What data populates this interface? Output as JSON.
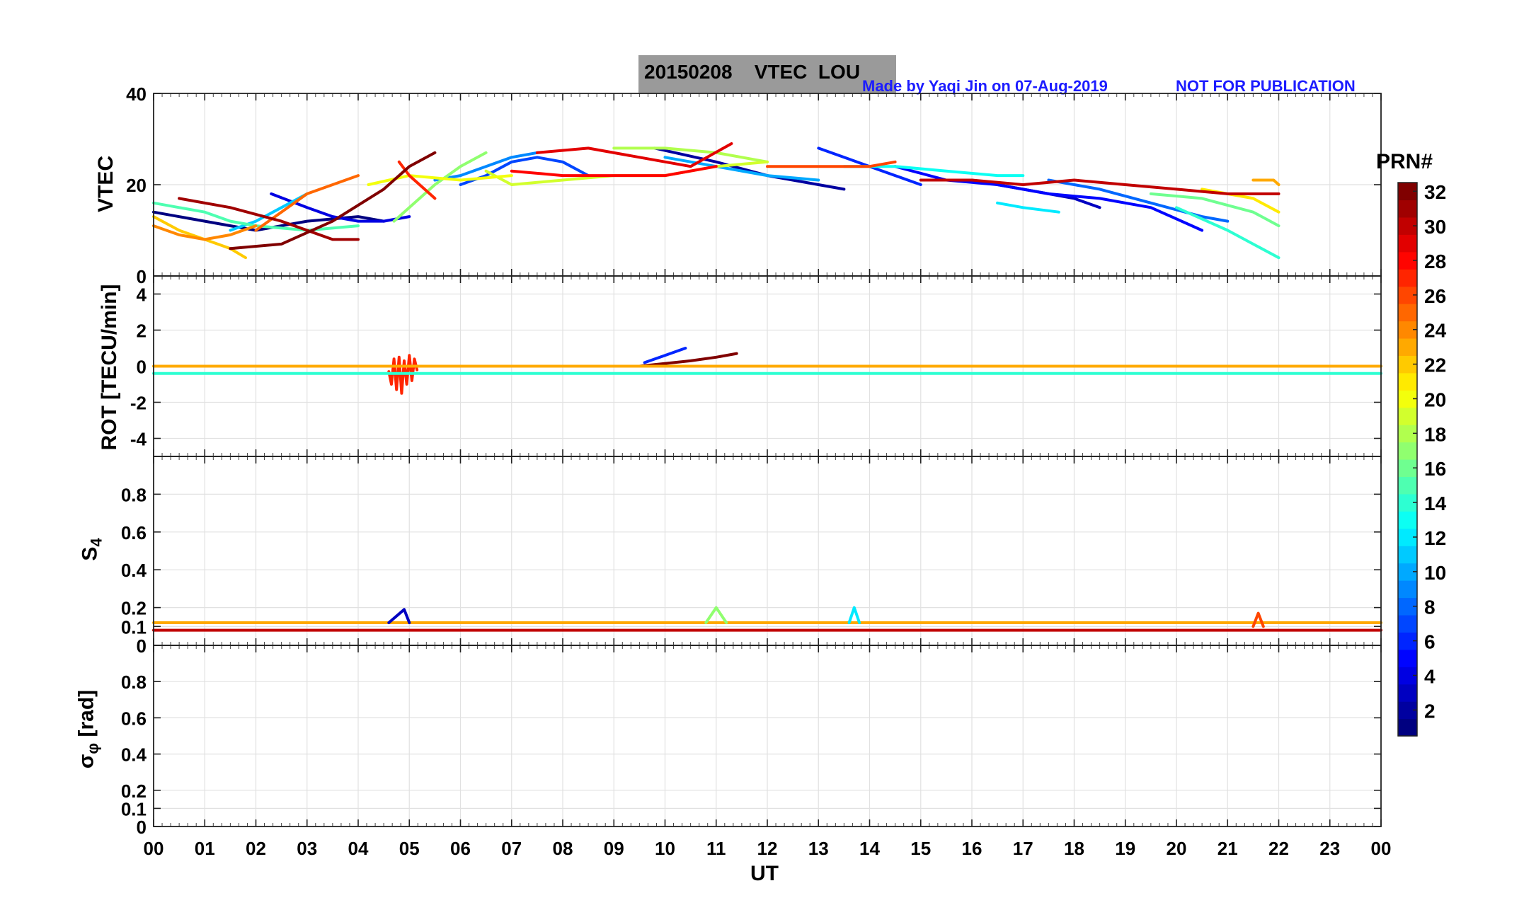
{
  "header": {
    "title": "20150208    VTEC  LOU",
    "credit": "Made by Yaqi Jin on 07-Aug-2019",
    "notice": "NOT FOR PUBLICATION"
  },
  "colorbar": {
    "title": "PRN#",
    "range": [
      1,
      32
    ],
    "ticks": [
      "2",
      "4",
      "6",
      "8",
      "10",
      "12",
      "14",
      "16",
      "18",
      "20",
      "22",
      "24",
      "26",
      "28",
      "30",
      "32"
    ]
  },
  "chart_data": [
    {
      "type": "line",
      "name": "vtec",
      "ylabel": "VTEC",
      "xlabel": "",
      "xlim": [
        0,
        24
      ],
      "ylim": [
        0,
        40
      ],
      "yticks": [
        "0",
        "20",
        "40"
      ],
      "grid": true,
      "series": [
        {
          "prn": 1,
          "x": [
            0.0,
            1.0,
            2.0,
            3.0,
            4.0,
            4.5
          ],
          "y": [
            14,
            12,
            10,
            12,
            13,
            12
          ]
        },
        {
          "prn": 2,
          "x": [
            9.8,
            11.0,
            12.0,
            13.0,
            13.5
          ],
          "y": [
            28,
            25,
            22,
            20,
            19
          ]
        },
        {
          "prn": 3,
          "x": [
            16.0,
            17.0,
            18.0,
            18.5
          ],
          "y": [
            21,
            19,
            17,
            15
          ]
        },
        {
          "prn": 4,
          "x": [
            2.3,
            3.0,
            3.5,
            4.0,
            4.5,
            5.0
          ],
          "y": [
            18,
            15,
            13,
            12,
            12,
            13
          ]
        },
        {
          "prn": 5,
          "x": [
            14.5,
            15.5,
            16.5,
            17.5,
            18.5,
            19.5,
            20.5
          ],
          "y": [
            24,
            21,
            20,
            18,
            17,
            15,
            10
          ]
        },
        {
          "prn": 6,
          "x": [
            13.0,
            13.5,
            14.0,
            14.5,
            15.0
          ],
          "y": [
            28,
            26,
            24,
            22,
            20
          ]
        },
        {
          "prn": 7,
          "x": [
            6.0,
            6.5,
            7.0,
            7.5,
            8.0,
            8.5
          ],
          "y": [
            20,
            22,
            25,
            26,
            25,
            22
          ]
        },
        {
          "prn": 8,
          "x": [
            17.5,
            18.5,
            19.5,
            20.5,
            21.0
          ],
          "y": [
            21,
            19,
            16,
            13,
            12
          ]
        },
        {
          "prn": 9,
          "x": [
            5.5,
            6.0,
            6.5,
            7.0,
            7.5
          ],
          "y": [
            21,
            22,
            24,
            26,
            27
          ]
        },
        {
          "prn": 10,
          "x": [
            10.0,
            11.0,
            12.0,
            13.0
          ],
          "y": [
            26,
            24,
            22,
            21
          ]
        },
        {
          "prn": 11,
          "x": [
            1.5,
            2.0,
            2.5,
            3.0
          ],
          "y": [
            10,
            12,
            15,
            18
          ]
        },
        {
          "prn": 12,
          "x": [
            16.5,
            17.0,
            17.7
          ],
          "y": [
            16,
            15,
            14
          ]
        },
        {
          "prn": 13,
          "x": [
            13.5,
            14.5,
            15.5,
            16.5,
            17.0
          ],
          "y": [
            24,
            24,
            23,
            22,
            22
          ]
        },
        {
          "prn": 14,
          "x": [
            20.0,
            21.0,
            22.0
          ],
          "y": [
            15,
            10,
            4
          ]
        },
        {
          "prn": 15,
          "x": [
            0.0,
            0.5,
            1.0,
            1.5,
            2.0,
            3.0,
            4.0
          ],
          "y": [
            16,
            15,
            14,
            12,
            11,
            10,
            11
          ]
        },
        {
          "prn": 16,
          "x": [
            19.5,
            20.5,
            21.5,
            22.0
          ],
          "y": [
            18,
            17,
            14,
            11
          ]
        },
        {
          "prn": 17,
          "x": [
            4.7,
            5.5,
            6.0,
            6.5
          ],
          "y": [
            12,
            20,
            24,
            27
          ]
        },
        {
          "prn": 18,
          "x": [
            9.0,
            10.0,
            11.0,
            12.0
          ],
          "y": [
            28,
            28,
            27,
            25
          ]
        },
        {
          "prn": 19,
          "x": [
            6.5,
            7.0,
            8.0,
            9.0,
            10.0,
            11.0,
            12.0
          ],
          "y": [
            23,
            20,
            21,
            22,
            22,
            24,
            25
          ]
        },
        {
          "prn": 20,
          "x": [
            4.2,
            5.0,
            6.0,
            7.0
          ],
          "y": [
            20,
            22,
            21,
            22
          ]
        },
        {
          "prn": 21,
          "x": [
            20.5,
            21.5,
            22.0
          ],
          "y": [
            19,
            17,
            14
          ]
        },
        {
          "prn": 22,
          "x": [
            0.0,
            0.5,
            1.0,
            1.5,
            1.8
          ],
          "y": [
            13,
            10,
            8,
            6,
            4
          ]
        },
        {
          "prn": 23,
          "x": [
            21.5,
            21.9,
            22.0
          ],
          "y": [
            21,
            21,
            20
          ]
        },
        {
          "prn": 24,
          "x": [
            0.0,
            0.5,
            1.0,
            1.5,
            2.0
          ],
          "y": [
            11,
            9,
            8,
            9,
            11
          ]
        },
        {
          "prn": 25,
          "x": [
            2.0,
            2.5,
            3.0,
            3.5,
            4.0
          ],
          "y": [
            10,
            14,
            18,
            20,
            22
          ]
        },
        {
          "prn": 26,
          "x": [
            12.0,
            13.0,
            14.0,
            14.5
          ],
          "y": [
            24,
            24,
            24,
            25
          ]
        },
        {
          "prn": 27,
          "x": [
            4.8,
            5.0,
            5.3,
            5.5
          ],
          "y": [
            25,
            22,
            19,
            17
          ]
        },
        {
          "prn": 28,
          "x": [
            7.0,
            8.0,
            9.0,
            10.0,
            11.0
          ],
          "y": [
            23,
            22,
            22,
            22,
            24
          ]
        },
        {
          "prn": 29,
          "x": [
            7.5,
            8.5,
            9.5,
            10.5,
            11.3
          ],
          "y": [
            27,
            28,
            26,
            24,
            29
          ]
        },
        {
          "prn": 30,
          "x": [
            15.0,
            16.0,
            17.0,
            18.0,
            19.0,
            20.0,
            21.0,
            22.0
          ],
          "y": [
            21,
            21,
            20,
            21,
            20,
            19,
            18,
            18
          ]
        },
        {
          "prn": 31,
          "x": [
            0.5,
            1.5,
            2.5,
            3.0,
            3.5,
            4.0
          ],
          "y": [
            17,
            15,
            12,
            10,
            8,
            8
          ]
        },
        {
          "prn": 32,
          "x": [
            1.5,
            2.5,
            3.5,
            4.5,
            5.0,
            5.5
          ],
          "y": [
            6,
            7,
            12,
            19,
            24,
            27
          ]
        }
      ]
    },
    {
      "type": "line",
      "name": "rot",
      "ylabel": "ROT [TECU/min]",
      "xlim": [
        0,
        24
      ],
      "ylim": [
        -5,
        5
      ],
      "yticks": [
        "-4",
        "-2",
        "0",
        "2",
        "4"
      ],
      "grid": true,
      "baseline": 0,
      "notes": "Most PRN traces within ±0.5 TECU/min; PRN 27 oscillates between -1.5 and +0.6 near 04:45-05:10 UT; PRN 6 rises to ~1 near 10:20 UT; PRN 32 trends to ~0.7 near 11:20 UT.",
      "series": [
        {
          "prn": 27,
          "x": [
            4.6,
            4.65,
            4.7,
            4.75,
            4.8,
            4.85,
            4.9,
            4.95,
            5.0,
            5.05,
            5.1,
            5.15
          ],
          "y": [
            -0.3,
            -1.0,
            0.4,
            -1.3,
            0.5,
            -1.5,
            0.3,
            -1.0,
            0.6,
            -0.8,
            0.4,
            -0.2
          ]
        },
        {
          "prn": 6,
          "x": [
            9.6,
            10.0,
            10.4
          ],
          "y": [
            0.2,
            0.6,
            1.0
          ]
        },
        {
          "prn": 32,
          "x": [
            9.5,
            10.5,
            11.0,
            11.4
          ],
          "y": [
            0.0,
            0.3,
            0.5,
            0.7
          ]
        },
        {
          "prn": 14,
          "x": [
            0.0,
            24.0
          ],
          "y": [
            -0.4,
            -0.4
          ]
        },
        {
          "prn": 23,
          "x": [
            0.0,
            24.0
          ],
          "y": [
            0.0,
            0.0
          ]
        }
      ]
    },
    {
      "type": "line",
      "name": "s4",
      "ylabel": "S4",
      "xlim": [
        0,
        24
      ],
      "ylim": [
        0,
        1
      ],
      "yticks": [
        "0",
        "0.1",
        "0.2",
        "0.4",
        "0.6",
        "0.8"
      ],
      "grid": true,
      "notes": "All PRNs have S4 between ~0.05 and ~0.2 across the day.",
      "series": [
        {
          "prn": 23,
          "x": [
            0.0,
            24.0
          ],
          "y": [
            0.12,
            0.12
          ]
        },
        {
          "prn": 30,
          "x": [
            0.0,
            24.0
          ],
          "y": [
            0.08,
            0.08
          ]
        },
        {
          "prn": 3,
          "x": [
            4.6,
            4.9,
            5.0
          ],
          "y": [
            0.12,
            0.19,
            0.12
          ]
        },
        {
          "prn": 17,
          "x": [
            10.8,
            11.0,
            11.2
          ],
          "y": [
            0.12,
            0.2,
            0.12
          ]
        },
        {
          "prn": 12,
          "x": [
            13.6,
            13.7,
            13.8
          ],
          "y": [
            0.12,
            0.2,
            0.12
          ]
        },
        {
          "prn": 26,
          "x": [
            21.5,
            21.6,
            21.7
          ],
          "y": [
            0.1,
            0.17,
            0.1
          ]
        }
      ]
    },
    {
      "type": "line",
      "name": "sigma_phi",
      "ylabel": "σφ [rad]",
      "xlabel": "UT",
      "xlim": [
        0,
        24
      ],
      "ylim": [
        0,
        1
      ],
      "yticks": [
        "0",
        "0.1",
        "0.2",
        "0.4",
        "0.6",
        "0.8"
      ],
      "xticks": [
        "00",
        "01",
        "02",
        "03",
        "04",
        "05",
        "06",
        "07",
        "08",
        "09",
        "10",
        "11",
        "12",
        "13",
        "14",
        "15",
        "16",
        "17",
        "18",
        "19",
        "20",
        "21",
        "22",
        "23",
        "00"
      ],
      "grid": true,
      "series": []
    }
  ]
}
